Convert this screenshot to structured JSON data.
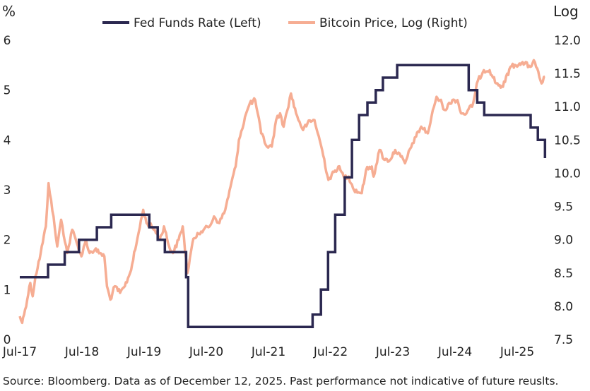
{
  "chart_data": {
    "type": "line",
    "title": "",
    "left_axis_label": "%",
    "right_axis_label": "Log",
    "x_tick_labels": [
      "Jul-17",
      "Jul-18",
      "Jul-19",
      "Jul-20",
      "Jul-21",
      "Jul-22",
      "Jul-23",
      "Jul-24",
      "Jul-25"
    ],
    "left_tick_labels": [
      "0",
      "1",
      "2",
      "3",
      "4",
      "5",
      "6"
    ],
    "right_tick_labels": [
      "7.5",
      "8.0",
      "8.5",
      "9.0",
      "9.5",
      "10.0",
      "10.5",
      "11.0",
      "11.5",
      "12.0"
    ],
    "ylim_left": [
      0,
      6
    ],
    "ylim_right": [
      7.5,
      12.0
    ],
    "x_range": [
      "2017-07",
      "2025-12"
    ],
    "grid": false,
    "legend_position": "top",
    "colors": {
      "fed": "#2b2850",
      "btc": "#f6ad93"
    },
    "series": [
      {
        "name": "Fed Funds Rate (Left)",
        "axis": "left",
        "step": true,
        "points": [
          [
            "2017-07-01",
            1.25
          ],
          [
            "2017-12-14",
            1.5
          ],
          [
            "2018-03-22",
            1.75
          ],
          [
            "2018-06-14",
            2.0
          ],
          [
            "2018-09-27",
            2.25
          ],
          [
            "2018-12-20",
            2.5
          ],
          [
            "2019-08-01",
            2.25
          ],
          [
            "2019-09-19",
            2.0
          ],
          [
            "2019-10-31",
            1.75
          ],
          [
            "2020-03-04",
            1.25
          ],
          [
            "2020-03-16",
            0.25
          ],
          [
            "2022-03-17",
            0.5
          ],
          [
            "2022-05-05",
            1.0
          ],
          [
            "2022-06-16",
            1.75
          ],
          [
            "2022-07-28",
            2.5
          ],
          [
            "2022-09-22",
            3.25
          ],
          [
            "2022-11-03",
            4.0
          ],
          [
            "2022-12-15",
            4.5
          ],
          [
            "2023-02-02",
            4.75
          ],
          [
            "2023-03-23",
            5.0
          ],
          [
            "2023-05-04",
            5.25
          ],
          [
            "2023-07-27",
            5.5
          ],
          [
            "2024-09-19",
            5.0
          ],
          [
            "2024-11-08",
            4.75
          ],
          [
            "2024-12-19",
            4.5
          ],
          [
            "2025-09-18",
            4.25
          ],
          [
            "2025-10-30",
            4.0
          ],
          [
            "2025-12-11",
            3.75
          ]
        ]
      },
      {
        "name": "Bitcoin Price, Log (Right)",
        "axis": "right",
        "step": false,
        "points": [
          [
            "2017-07-01",
            7.85
          ],
          [
            "2017-07-15",
            7.75
          ],
          [
            "2017-08-01",
            7.95
          ],
          [
            "2017-09-01",
            8.35
          ],
          [
            "2017-09-15",
            8.15
          ],
          [
            "2017-10-01",
            8.45
          ],
          [
            "2017-11-01",
            8.8
          ],
          [
            "2017-12-01",
            9.2
          ],
          [
            "2017-12-17",
            9.85
          ],
          [
            "2018-01-01",
            9.6
          ],
          [
            "2018-02-06",
            8.9
          ],
          [
            "2018-03-01",
            9.3
          ],
          [
            "2018-04-06",
            8.8
          ],
          [
            "2018-05-05",
            9.15
          ],
          [
            "2018-06-01",
            8.95
          ],
          [
            "2018-06-28",
            8.75
          ],
          [
            "2018-07-25",
            9.0
          ],
          [
            "2018-08-15",
            8.8
          ],
          [
            "2018-09-15",
            8.85
          ],
          [
            "2018-10-15",
            8.8
          ],
          [
            "2018-11-10",
            8.75
          ],
          [
            "2018-11-25",
            8.3
          ],
          [
            "2018-12-15",
            8.1
          ],
          [
            "2019-01-10",
            8.3
          ],
          [
            "2019-02-10",
            8.2
          ],
          [
            "2019-03-10",
            8.3
          ],
          [
            "2019-04-10",
            8.5
          ],
          [
            "2019-05-10",
            8.85
          ],
          [
            "2019-06-26",
            9.45
          ],
          [
            "2019-07-15",
            9.25
          ],
          [
            "2019-08-15",
            9.2
          ],
          [
            "2019-09-15",
            9.1
          ],
          [
            "2019-10-01",
            9.0
          ],
          [
            "2019-10-26",
            9.2
          ],
          [
            "2019-11-25",
            8.9
          ],
          [
            "2019-12-18",
            8.8
          ],
          [
            "2020-01-20",
            9.0
          ],
          [
            "2020-02-13",
            9.2
          ],
          [
            "2020-03-12",
            8.5
          ],
          [
            "2020-04-10",
            8.95
          ],
          [
            "2020-05-10",
            9.1
          ],
          [
            "2020-06-15",
            9.15
          ],
          [
            "2020-07-20",
            9.2
          ],
          [
            "2020-08-15",
            9.35
          ],
          [
            "2020-09-15",
            9.25
          ],
          [
            "2020-10-20",
            9.45
          ],
          [
            "2020-11-20",
            9.8
          ],
          [
            "2020-12-20",
            10.1
          ],
          [
            "2021-01-08",
            10.5
          ],
          [
            "2021-02-20",
            10.9
          ],
          [
            "2021-03-13",
            11.05
          ],
          [
            "2021-04-14",
            11.1
          ],
          [
            "2021-05-19",
            10.6
          ],
          [
            "2021-06-22",
            10.4
          ],
          [
            "2021-07-20",
            10.4
          ],
          [
            "2021-08-15",
            10.8
          ],
          [
            "2021-09-07",
            10.9
          ],
          [
            "2021-09-28",
            10.7
          ],
          [
            "2021-11-10",
            11.2
          ],
          [
            "2021-12-10",
            10.9
          ],
          [
            "2022-01-20",
            10.65
          ],
          [
            "2022-02-15",
            10.75
          ],
          [
            "2022-03-28",
            10.8
          ],
          [
            "2022-05-12",
            10.35
          ],
          [
            "2022-06-18",
            9.9
          ],
          [
            "2022-08-15",
            10.1
          ],
          [
            "2022-09-15",
            9.95
          ],
          [
            "2022-10-15",
            9.95
          ],
          [
            "2022-11-15",
            9.75
          ],
          [
            "2022-12-31",
            9.7
          ],
          [
            "2023-01-25",
            10.05
          ],
          [
            "2023-02-28",
            10.1
          ],
          [
            "2023-03-10",
            9.95
          ],
          [
            "2023-04-14",
            10.35
          ],
          [
            "2023-05-15",
            10.2
          ],
          [
            "2023-06-15",
            10.2
          ],
          [
            "2023-07-15",
            10.35
          ],
          [
            "2023-08-17",
            10.25
          ],
          [
            "2023-09-11",
            10.15
          ],
          [
            "2023-10-24",
            10.45
          ],
          [
            "2023-11-15",
            10.55
          ],
          [
            "2023-12-15",
            10.7
          ],
          [
            "2024-01-23",
            10.6
          ],
          [
            "2024-02-28",
            11.0
          ],
          [
            "2024-03-14",
            11.15
          ],
          [
            "2024-04-15",
            11.05
          ],
          [
            "2024-05-01",
            10.95
          ],
          [
            "2024-06-15",
            11.1
          ],
          [
            "2024-07-15",
            11.1
          ],
          [
            "2024-08-05",
            10.9
          ],
          [
            "2024-09-06",
            10.9
          ],
          [
            "2024-10-15",
            11.05
          ],
          [
            "2024-11-13",
            11.4
          ],
          [
            "2024-12-17",
            11.55
          ],
          [
            "2025-01-20",
            11.55
          ],
          [
            "2025-02-28",
            11.35
          ],
          [
            "2025-04-08",
            11.3
          ],
          [
            "2025-05-22",
            11.6
          ],
          [
            "2025-07-14",
            11.65
          ],
          [
            "2025-08-14",
            11.65
          ],
          [
            "2025-09-15",
            11.6
          ],
          [
            "2025-10-06",
            11.7
          ],
          [
            "2025-10-20",
            11.6
          ],
          [
            "2025-11-21",
            11.35
          ],
          [
            "2025-12-11",
            11.45
          ]
        ]
      }
    ]
  },
  "source_note": "Source: Bloomberg. Data as of December 12, 2025. Past performance not indicative of future reuslts."
}
